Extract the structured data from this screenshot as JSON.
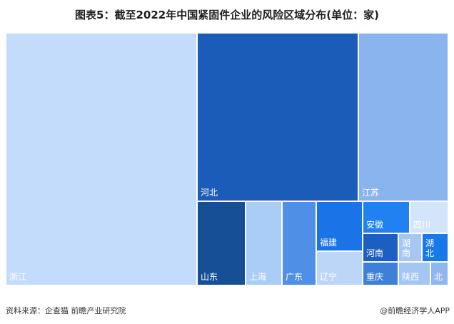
{
  "title": "图表5：截至2022年中国紧固件企业的风险区域分布(单位：家)",
  "chart_data": {
    "type": "treemap",
    "title": "图表5：截至2022年中国紧固件企业的风险区域分布(单位：家)",
    "unit": "家",
    "items": [
      {
        "name": "浙江",
        "color": "#c3dcfb"
      },
      {
        "name": "河北",
        "color": "#1b5cb8"
      },
      {
        "name": "江苏",
        "color": "#8ab4ee"
      },
      {
        "name": "山东",
        "color": "#174f97"
      },
      {
        "name": "上海",
        "color": "#a9cdf7"
      },
      {
        "name": "广东",
        "color": "#4f8fe6"
      },
      {
        "name": "福建",
        "color": "#1a74e8"
      },
      {
        "name": "辽宁",
        "color": "#bcd6f7"
      },
      {
        "name": "安徽",
        "color": "#1f82f0"
      },
      {
        "name": "四川",
        "color": "#d3e5fb"
      },
      {
        "name": "河南",
        "color": "#1c5fc1"
      },
      {
        "name": "湖南",
        "color": "#a6c7f2"
      },
      {
        "name": "湖北",
        "color": "#1a79ea"
      },
      {
        "name": "重庆",
        "color": "#3e80d9"
      },
      {
        "name": "陕西",
        "color": "#a4c6f2"
      },
      {
        "name": "北",
        "color": "#8fb6ee"
      }
    ]
  },
  "footer": {
    "source": "资料来源：企查猫 前瞻产业研究院",
    "brand": "@前瞻经济学人APP"
  }
}
